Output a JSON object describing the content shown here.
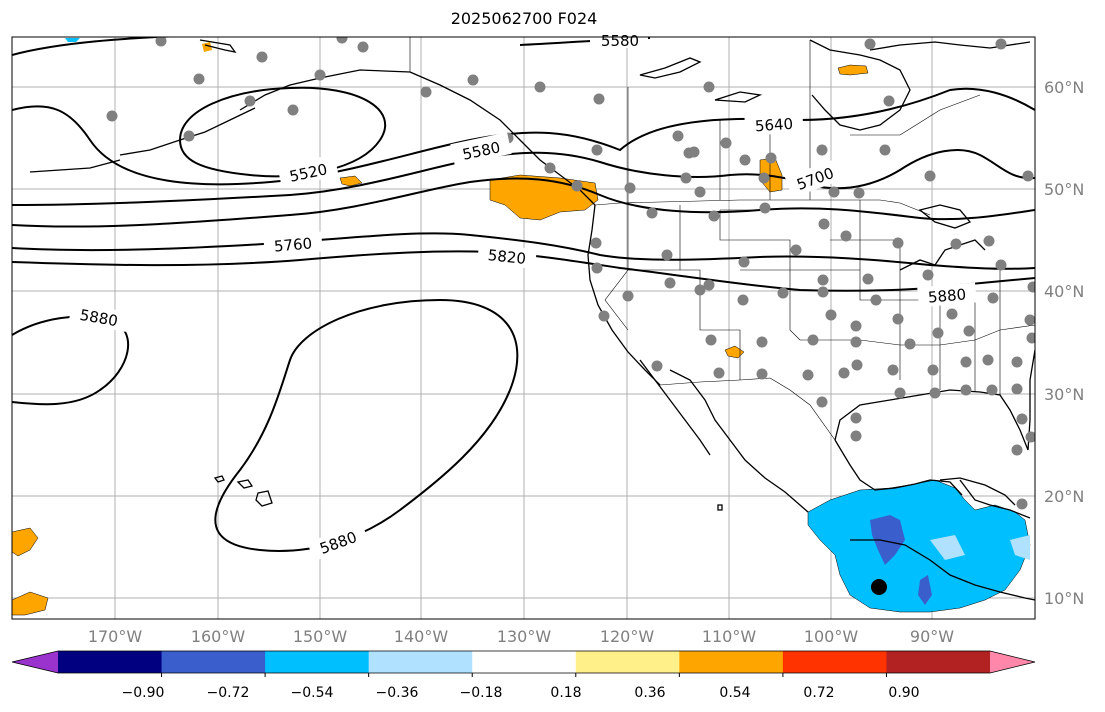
{
  "title": "2025062700 F024",
  "map": {
    "lon_labels": [
      "170°W",
      "160°W",
      "150°W",
      "140°W",
      "130°W",
      "120°W",
      "110°W",
      "100°W",
      "90°W"
    ],
    "lat_labels": [
      "60°N",
      "50°N",
      "40°N",
      "30°N",
      "20°N",
      "10°N"
    ],
    "contour_labels": [
      "5580",
      "5520",
      "5580",
      "5640",
      "5700",
      "5760",
      "5820",
      "5880",
      "5880",
      "5880"
    ],
    "contour_color": "#000000",
    "station_color": "#808080",
    "grid_color": "#b0b0b0"
  },
  "colorbar": {
    "tick_labels": [
      "−0.90",
      "−0.72",
      "−0.54",
      "−0.36",
      "−0.18",
      "0.18",
      "0.36",
      "0.54",
      "0.72",
      "0.90"
    ],
    "colors": [
      "#9a32cd",
      "#000080",
      "#3a5fcd",
      "#00bfff",
      "#b0e2ff",
      "#ffffff",
      "#fff08a",
      "#ffa500",
      "#ff3300",
      "#b22222",
      "#ff88aa"
    ]
  }
}
